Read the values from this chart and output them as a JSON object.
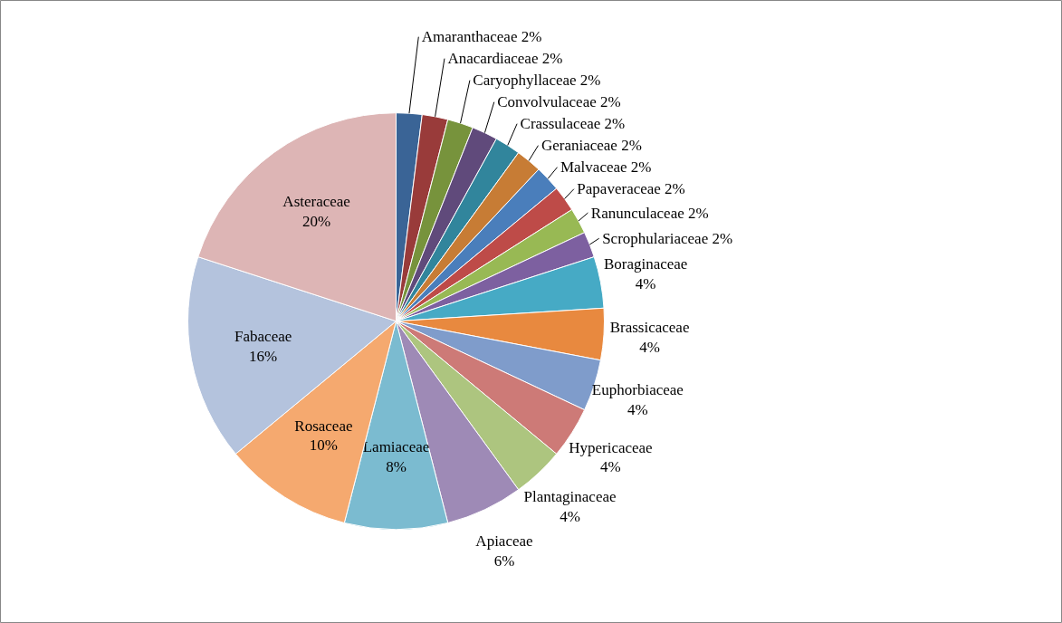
{
  "chart_data": {
    "type": "pie",
    "categories": [
      "Amaranthaceae",
      "Anacardiaceae",
      "Caryophyllaceae",
      "Convolvulaceae",
      "Crassulaceae",
      "Geraniaceae",
      "Malvaceae",
      "Papaveraceae",
      "Ranunculaceae",
      "Scrophulariaceae",
      "Boraginaceae",
      "Brassicaceae",
      "Euphorbiaceae",
      "Hypericaceae",
      "Plantaginaceae",
      "Apiaceae",
      "Lamiaceae",
      "Rosaceae",
      "Fabaceae",
      "Asteraceae"
    ],
    "values": [
      2,
      2,
      2,
      2,
      2,
      2,
      2,
      2,
      2,
      2,
      4,
      4,
      4,
      4,
      4,
      6,
      8,
      10,
      16,
      20
    ],
    "value_labels": [
      "2%",
      "2%",
      "2%",
      "2%",
      "2%",
      "2%",
      "2%",
      "2%",
      "2%",
      "2%",
      "4%",
      "4%",
      "4%",
      "4%",
      "4%",
      "6%",
      "8%",
      "10%",
      "16%",
      "20%"
    ],
    "colors": [
      "#3a6496",
      "#993b3a",
      "#77933c",
      "#604a7b",
      "#31859c",
      "#c77c35",
      "#4a7ebb",
      "#be4b48",
      "#98b954",
      "#7d60a0",
      "#46aac5",
      "#e8893f",
      "#7f9ccb",
      "#cd7a77",
      "#adc57f",
      "#9e8ab6",
      "#7bbbd0",
      "#f5a96f",
      "#b4c3dd",
      "#ddb5b5"
    ]
  }
}
